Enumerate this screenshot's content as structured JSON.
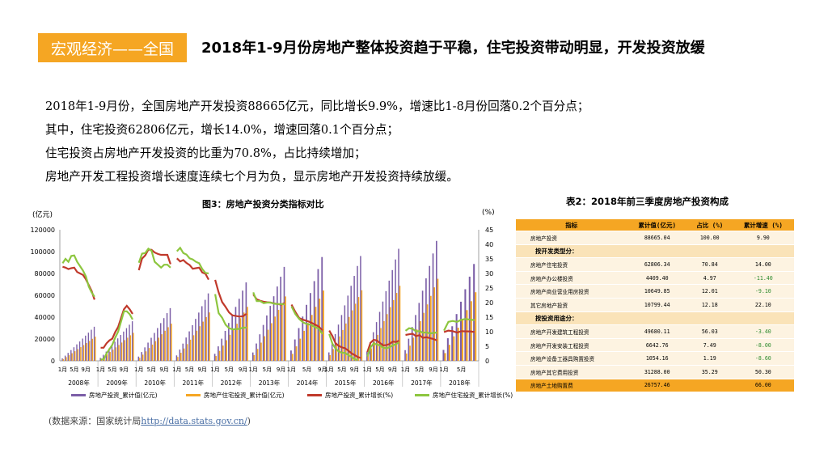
{
  "header": {
    "section_tag": "宏观经济——全国",
    "title": "2018年1-9月份房地产整体投资趋于平稳，住宅投资带动明显，开发投资放缓"
  },
  "body_lines": [
    "2018年1-9月份，全国房地产开发投资88665亿元，同比增长9.9%，增速比1-8月份回落0.2个百分点；",
    "其中，住宅投资62806亿元，增长14.0%，增速回落0.1个百分点；",
    "住宅投资占房地产开发投资的比重为70.8%，占比持续增加；",
    "房地产开发工程投资增长速度连续七个月为负，显示房地产开发投资持续放缓。"
  ],
  "chart_data": {
    "type": "bar",
    "title": "图3：房地产投资分类指标对比",
    "ylabel_left": "(亿元)",
    "ylabel_right": "(%)",
    "y_left_range": [
      0,
      120000
    ],
    "y_left_ticks": [
      "0",
      "20000",
      "40000",
      "60000",
      "80000",
      "100000",
      "120000"
    ],
    "y_right_range": [
      0,
      45
    ],
    "y_right_ticks": [
      "0",
      "5",
      "10",
      "15",
      "20",
      "25",
      "30",
      "35",
      "40",
      "45"
    ],
    "years": [
      "2008年",
      "2009年",
      "2010年",
      "2011年",
      "2012年",
      "2013年",
      "2014年",
      "2015年",
      "2016年",
      "2017年",
      "2018年"
    ],
    "month_tick_labels": [
      "1月",
      "5月",
      "9月"
    ],
    "series": [
      {
        "name": "房地产投资_累计值(亿元)",
        "color": "#7B5EA7",
        "kind": "bar",
        "annual_totals": [
          31203,
          36242,
          48259,
          61740,
          71804,
          86013,
          95036,
          95979,
          102581,
          109799,
          88665
        ]
      },
      {
        "name": "房地产住宅投资_累计值(亿元)",
        "color": "#F5A623",
        "kind": "bar",
        "annual_totals": [
          22081,
          25619,
          34026,
          44308,
          49374,
          58951,
          64352,
          64595,
          68704,
          75148,
          62806
        ]
      },
      {
        "name": "房地产投资_累计增长(%)",
        "color": "#C0392B",
        "kind": "line",
        "values": [
          [
            32.3,
            32.0,
            31.5,
            31.8,
            32.0,
            30.5,
            30.0,
            29.5,
            28.0,
            26.0,
            24.0,
            21.0
          ],
          [
            4.5,
            4.5,
            6.0,
            7.0,
            7.6,
            9.9,
            11.6,
            14.7,
            17.7,
            18.9,
            17.7,
            16.1
          ],
          [
            31.1,
            35.1,
            36.2,
            38.2,
            38.1,
            37.2,
            36.7,
            36.4,
            36.4,
            36.4,
            33.2
          ],
          [
            35.2,
            34.1,
            34.6,
            33.6,
            32.9,
            31.6,
            31.8,
            32.0,
            30.3,
            29.9,
            27.9
          ],
          [
            27.8,
            23.5,
            20.2,
            18.5,
            16.6,
            15.6,
            15.4,
            15.2,
            15.3,
            16.2
          ],
          [
            22.8,
            21.1,
            20.6,
            20.3,
            20.1,
            20.0,
            19.7,
            19.5,
            19.3,
            19.8
          ],
          [
            19.3,
            16.8,
            14.7,
            14.1,
            13.7,
            13.2,
            12.5,
            11.8,
            10.5
          ],
          [
            10.4,
            8.5,
            6.0,
            5.1,
            4.6,
            4.3,
            3.5,
            2.6,
            2.0,
            1.3,
            1.0
          ],
          [
            3.0,
            6.2,
            7.2,
            7.0,
            6.1,
            5.3,
            5.4,
            5.8,
            6.6,
            6.5,
            6.9
          ],
          [
            8.9,
            9.1,
            9.3,
            8.5,
            8.8,
            7.9,
            8.1,
            7.8,
            7.5,
            7.0
          ],
          [
            9.9,
            10.4,
            10.2,
            9.7,
            10.2,
            10.1,
            10.1,
            9.9
          ]
        ]
      },
      {
        "name": "房地产住宅投资_累计增长(%)",
        "color": "#8DC63F",
        "kind": "line",
        "values": [
          [
            33.5,
            35.0,
            34.0,
            36.0,
            36.2,
            34.0,
            32.5,
            31.0,
            29.0,
            25.5,
            23.5,
            22.0
          ],
          [
            0.5,
            0.5,
            2.5,
            4.0,
            5.5,
            8.0,
            10.0,
            13.5,
            17.0,
            17.0,
            16.0,
            14.2
          ],
          [
            33.7,
            36.8,
            37.0,
            38.5,
            37.8,
            34.0,
            33.0,
            32.0,
            33.0,
            33.0,
            32.0
          ],
          [
            37.6,
            38.8,
            37.0,
            36.5,
            35.2,
            34.8,
            34.0,
            33.5,
            31.5,
            30.2,
            30.0
          ],
          [
            22.9,
            16.4,
            14.8,
            12.4,
            11.2,
            10.8,
            10.9,
            11.0,
            11.4,
            11.4
          ],
          [
            23.5,
            20.5,
            20.5,
            19.8,
            20.0,
            20.0,
            19.6,
            19.5,
            19.5,
            19.4
          ],
          [
            18.7,
            16.1,
            14.4,
            13.2,
            12.6,
            12.4,
            11.6,
            11.1,
            9.2
          ],
          [
            9.2,
            5.9,
            4.2,
            3.2,
            2.8,
            2.7,
            2.0,
            1.4,
            0.5,
            0.4
          ],
          [
            1.5,
            4.6,
            6.0,
            5.6,
            5.3,
            4.5,
            4.3,
            4.7,
            5.3,
            5.7,
            6.4
          ],
          [
            10.3,
            11.2,
            11.0,
            10.1,
            10.2,
            9.6,
            9.8,
            9.4,
            9.6,
            9.7
          ],
          [
            10.4,
            13.4,
            13.7,
            13.4,
            14.1,
            14.4,
            14.1,
            14.0
          ]
        ]
      }
    ]
  },
  "table": {
    "title": "表2：2018年前三季度房地产投资构成",
    "headers": [
      "指标",
      "累计值(亿元)",
      "占比 (%)",
      "累计增速 (%)"
    ],
    "rows": [
      {
        "kind": "r",
        "name": "房地产投资",
        "value": "88665.04",
        "share": "100.00",
        "growth": "9.90",
        "neg": false
      },
      {
        "kind": "s",
        "name": "按开发类型分："
      },
      {
        "kind": "r",
        "name": "房地产住宅投资",
        "value": "62806.34",
        "share": "70.84",
        "growth": "14.00",
        "neg": false
      },
      {
        "kind": "r",
        "name": "房地产办公楼投资",
        "value": "4409.40",
        "share": "4.97",
        "growth": "-11.40",
        "neg": true
      },
      {
        "kind": "r",
        "name": "房地产商业营业用房投资",
        "value": "10649.85",
        "share": "12.01",
        "growth": "-9.10",
        "neg": true
      },
      {
        "kind": "r",
        "name": "其它房地产投资",
        "value": "10799.44",
        "share": "12.18",
        "growth": "22.10",
        "neg": false
      },
      {
        "kind": "s",
        "name": "按投资用途分："
      },
      {
        "kind": "r",
        "name": "房地产开发建筑工程投资",
        "value": "49680.11",
        "share": "56.03",
        "growth": "-3.40",
        "neg": true
      },
      {
        "kind": "r",
        "name": "房地产开发安装工程投资",
        "value": "6642.76",
        "share": "7.49",
        "growth": "-8.00",
        "neg": true
      },
      {
        "kind": "r",
        "name": "房地产设备工器具购置投资",
        "value": "1054.16",
        "share": "1.19",
        "growth": "-8.60",
        "neg": true
      },
      {
        "kind": "r",
        "name": "房地产其它费用投资",
        "value": "31288.00",
        "share": "35.29",
        "growth": "50.30",
        "neg": false
      },
      {
        "kind": "f",
        "name": "房地产土地购置费",
        "value": "26757.46",
        "share": "",
        "growth": "66.00",
        "neg": false
      }
    ]
  },
  "source": {
    "prefix": "(数据来源：国家统计局",
    "link": "http://data.stats.gov.cn/",
    "suffix": ")"
  }
}
